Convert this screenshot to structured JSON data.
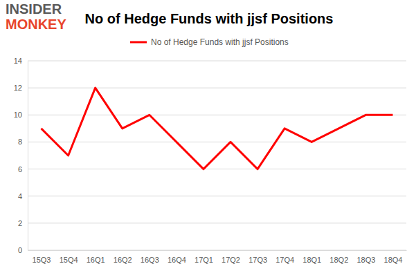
{
  "chart_data": {
    "type": "line",
    "title": "No of Hedge Funds with jjsf Positions",
    "annotations": [
      "INSIDER",
      "MONKEY"
    ],
    "categories": [
      "15Q3",
      "15Q4",
      "16Q1",
      "16Q2",
      "16Q3",
      "16Q4",
      "17Q1",
      "17Q2",
      "17Q3",
      "17Q4",
      "18Q1",
      "18Q2",
      "18Q3",
      "18Q4"
    ],
    "series": [
      {
        "name": "No of Hedge Funds with jjsf Positions",
        "color": "#ff0000",
        "values": [
          9,
          7,
          12,
          9,
          10,
          8,
          6,
          8,
          6,
          9,
          8,
          9,
          10,
          10
        ]
      }
    ],
    "ylim": [
      0,
      14
    ],
    "yticks": [
      0,
      2,
      4,
      6,
      8,
      10,
      12,
      14
    ],
    "grid": true,
    "legend": "top"
  }
}
